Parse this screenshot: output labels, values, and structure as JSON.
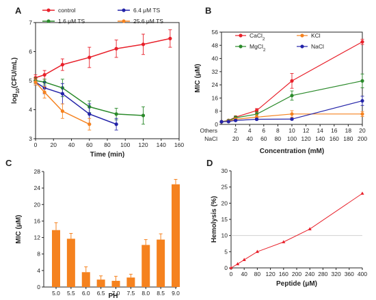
{
  "chart_data": [
    {
      "panel": "A",
      "type": "line",
      "xlabel": "Time (min)",
      "ylabel": "log10(CFU/mL)",
      "xlim": [
        0,
        160
      ],
      "ylim": [
        3,
        7
      ],
      "xticks": [
        0,
        20,
        40,
        60,
        80,
        100,
        120,
        140,
        160
      ],
      "yticks": [
        3,
        4,
        5,
        6,
        7
      ],
      "legend": "top",
      "series": [
        {
          "name": "control",
          "color": "#e8202a",
          "marker": "circle",
          "x": [
            0,
            10,
            30,
            60,
            90,
            120,
            150
          ],
          "y": [
            5.1,
            5.2,
            5.55,
            5.8,
            6.1,
            6.25,
            6.45
          ],
          "err": [
            0.1,
            0.15,
            0.2,
            0.35,
            0.3,
            0.35,
            0.3
          ]
        },
        {
          "name": "1.6 μM TS",
          "color": "#2b8a2b",
          "marker": "circle",
          "x": [
            0,
            10,
            30,
            60,
            90,
            120
          ],
          "y": [
            5.0,
            4.95,
            4.75,
            4.1,
            3.85,
            3.8
          ],
          "err": [
            0.1,
            0.1,
            0.3,
            0.2,
            0.2,
            0.3
          ]
        },
        {
          "name": "6.4 μM TS",
          "color": "#2323a8",
          "marker": "circle",
          "x": [
            0,
            10,
            30,
            60,
            90
          ],
          "y": [
            4.95,
            4.75,
            4.55,
            3.85,
            3.5
          ],
          "err": [
            0.1,
            0.2,
            0.35,
            0.35,
            0.2
          ]
        },
        {
          "name": "25.6 μM TS",
          "color": "#f5821f",
          "marker": "circle",
          "x": [
            0,
            10,
            30,
            60
          ],
          "y": [
            4.95,
            4.6,
            3.95,
            3.5
          ],
          "err": [
            0.1,
            0.2,
            0.25,
            0.2
          ]
        }
      ]
    },
    {
      "panel": "B",
      "type": "line",
      "xlabel": "Concentration (mM)",
      "ylabel": "MIC (μM)",
      "ylim": [
        0,
        56
      ],
      "yticks": [
        0,
        8,
        16,
        24,
        32,
        40,
        48,
        56
      ],
      "xaxis_rows": [
        {
          "label": "Others",
          "ticks": [
            "2",
            "4",
            "6",
            "8",
            "10",
            "12",
            "14",
            "16",
            "18",
            "20"
          ]
        },
        {
          "label": "NaCl",
          "ticks": [
            "20",
            "40",
            "60",
            "80",
            "100",
            "120",
            "140",
            "160",
            "180",
            "200"
          ]
        }
      ],
      "xlim_others": [
        0,
        20
      ],
      "legend": "top-left",
      "series": [
        {
          "name": "CaCl2",
          "color": "#e8202a",
          "marker": "circle",
          "x": [
            0,
            1,
            2,
            5,
            10,
            20
          ],
          "y": [
            1.6,
            2.4,
            4.4,
            8.4,
            26.4,
            50.1
          ],
          "err": [
            0.5,
            0.5,
            0.7,
            1.2,
            4.5,
            1.6
          ]
        },
        {
          "name": "MgCl2",
          "color": "#2b8a2b",
          "marker": "circle",
          "x": [
            0,
            1,
            2,
            5,
            10,
            20
          ],
          "y": [
            1.6,
            2.3,
            4.0,
            6.2,
            17.5,
            26.4
          ],
          "err": [
            0.5,
            0.5,
            1.0,
            1.5,
            2.8,
            4.2
          ]
        },
        {
          "name": "KCl",
          "color": "#f5821f",
          "marker": "circle",
          "x": [
            0,
            1,
            2,
            5,
            10,
            20
          ],
          "y": [
            1.6,
            2.0,
            3.1,
            4.4,
            6.3,
            6.3
          ],
          "err": [
            0.3,
            0.4,
            0.8,
            1.5,
            2.0,
            1.5
          ]
        },
        {
          "name": "NaCl",
          "color": "#2323a8",
          "marker": "circle",
          "x": [
            0,
            1,
            2,
            5,
            10,
            20
          ],
          "y": [
            1.6,
            1.7,
            2.4,
            3.1,
            3.2,
            14.3
          ],
          "err": [
            0.3,
            0.3,
            0.4,
            0.5,
            0.5,
            2.8
          ]
        }
      ]
    },
    {
      "panel": "C",
      "type": "bar",
      "xlabel": "PH",
      "ylabel": "MIC (μM)",
      "ylim": [
        0,
        28
      ],
      "yticks": [
        0,
        4,
        8,
        12,
        16,
        20,
        24,
        28
      ],
      "color": "#f5821f",
      "categories": [
        "5.0",
        "5.5",
        "6.0",
        "6.5",
        "7.0",
        "7.5",
        "8.0",
        "8.5",
        "9.0"
      ],
      "values": [
        13.8,
        11.7,
        3.6,
        1.8,
        1.5,
        2.3,
        10.2,
        11.5,
        24.9
      ],
      "err": [
        1.8,
        1.3,
        1.3,
        0.9,
        1.1,
        0.8,
        1.3,
        1.4,
        1.2
      ]
    },
    {
      "panel": "D",
      "type": "line",
      "xlabel": "Peptide (μM)",
      "ylabel": "Hemolysis (%)",
      "xlim": [
        0,
        400
      ],
      "ylim": [
        0,
        30
      ],
      "xticks": [
        0,
        40,
        80,
        120,
        160,
        200,
        240,
        280,
        320,
        360,
        400
      ],
      "yticks": [
        0,
        5,
        10,
        15,
        20,
        25,
        30
      ],
      "reference_line": 10,
      "color": "#e8202a",
      "marker": "triangle",
      "x": [
        0,
        20,
        40,
        80,
        160,
        240,
        400
      ],
      "y": [
        0,
        1.2,
        2.5,
        5.0,
        8.0,
        12.0,
        23.0
      ]
    }
  ]
}
